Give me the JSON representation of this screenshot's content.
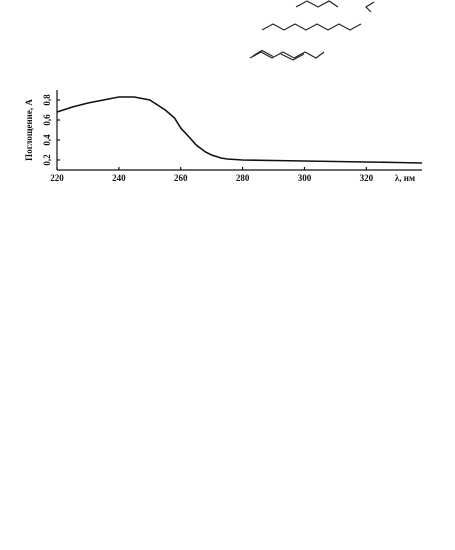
{
  "chart_data": {
    "type": "line",
    "x_label": "λ, нм",
    "y_label": "Поглощение, A",
    "x": [
      220,
      225,
      230,
      235,
      240,
      245,
      250,
      255,
      258,
      260,
      263,
      265,
      268,
      270,
      273,
      275,
      280,
      290,
      300,
      310,
      320,
      330,
      338
    ],
    "series": [
      {
        "color": "#111111",
        "values": [
          0.68,
          0.73,
          0.77,
          0.8,
          0.83,
          0.83,
          0.8,
          0.7,
          0.62,
          0.52,
          0.42,
          0.35,
          0.28,
          0.25,
          0.22,
          0.21,
          0.2,
          0.195,
          0.19,
          0.185,
          0.18,
          0.175,
          0.17
        ]
      }
    ],
    "xlim": [
      220,
      338
    ],
    "ylim": [
      0.1,
      0.9
    ],
    "xticks": [
      220,
      240,
      260,
      280,
      300,
      320
    ],
    "yticks": [
      {
        "value": 0.2,
        "label": "0,2"
      },
      {
        "value": 0.4,
        "label": "0,4"
      },
      {
        "value": 0.6,
        "label": "0,6"
      },
      {
        "value": 0.8,
        "label": "0,8"
      }
    ]
  }
}
